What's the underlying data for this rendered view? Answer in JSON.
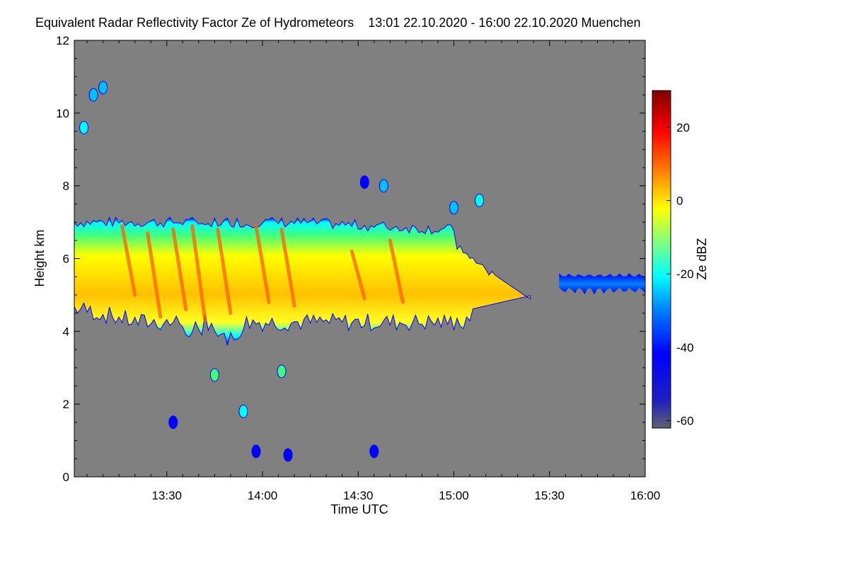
{
  "title_parts": {
    "main": "Equivalent Radar Reflectivity Factor Ze of Hydrometeors",
    "time_range": "13:01 22.10.2020 - 16:00 22.10.2020 Muenchen"
  },
  "chart_data": {
    "type": "heatmap",
    "title": "Equivalent Radar Reflectivity Factor Ze of Hydrometeors   13:01 22.10.2020 - 16:00 22.10.2020 Muenchen",
    "xlabel": "Time UTC",
    "ylabel": "Height km",
    "colorbar_label": "Ze dBZ",
    "x_range_minutes_utc": [
      781,
      960
    ],
    "x_ticks": [
      {
        "minute": 810,
        "label": "13:30"
      },
      {
        "minute": 840,
        "label": "14:00"
      },
      {
        "minute": 870,
        "label": "14:30"
      },
      {
        "minute": 900,
        "label": "15:00"
      },
      {
        "minute": 930,
        "label": "15:30"
      },
      {
        "minute": 960,
        "label": "16:00"
      }
    ],
    "ylim": [
      0,
      12
    ],
    "y_ticks": [
      0,
      2,
      4,
      6,
      8,
      10,
      12
    ],
    "colorbar_range": [
      -62,
      30
    ],
    "colorbar_ticks": [
      20,
      0,
      -20,
      -40,
      -60
    ],
    "colors": {
      "background": "#808080",
      "low": "#5a5a8c",
      "blue": "#0000ff",
      "cyan": "#00ffff",
      "yellow": "#ffff00",
      "orange": "#ff8000",
      "red": "#ff0000",
      "dark_red": "#800000"
    },
    "cloud_layer": {
      "description_note": "main ice cloud layer",
      "start_minute": 781,
      "end_minute": 924,
      "top_km_approx": 7.0,
      "base_km_approx": 4.2,
      "peak_dbz_approx": 15
    },
    "secondary_layer": {
      "start_minute": 933,
      "end_minute": 960,
      "top_km_approx": 5.6,
      "base_km_approx": 5.0,
      "peak_dbz_approx": -40
    }
  }
}
